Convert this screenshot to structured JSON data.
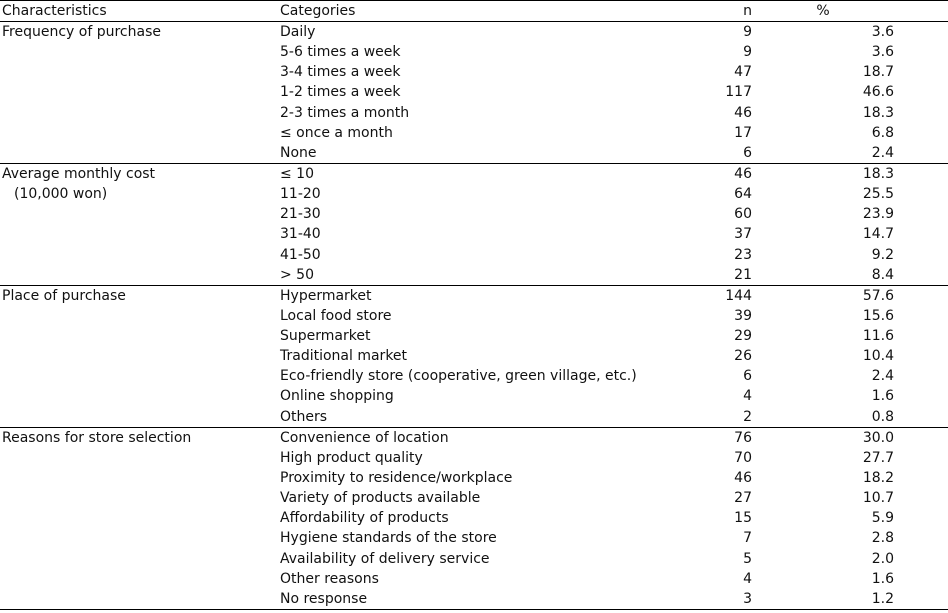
{
  "headers": {
    "characteristics": "Characteristics",
    "categories": "Categories",
    "n": "n",
    "percent": "%"
  },
  "groups": [
    {
      "name": "Frequency of purchase",
      "name_line2": "",
      "rows": [
        {
          "category": "Daily",
          "n": "9",
          "pct": "3.6"
        },
        {
          "category": "5-6 times a week",
          "n": "9",
          "pct": "3.6"
        },
        {
          "category": "3-4 times a week",
          "n": "47",
          "pct": "18.7"
        },
        {
          "category": "1-2 times a week",
          "n": "117",
          "pct": "46.6"
        },
        {
          "category": "2-3 times a month",
          "n": "46",
          "pct": "18.3"
        },
        {
          "category": "≤ once a month",
          "n": "17",
          "pct": "6.8"
        },
        {
          "category": "None",
          "n": "6",
          "pct": "2.4"
        }
      ]
    },
    {
      "name": "Average monthly cost",
      "name_line2": "(10,000 won)",
      "rows": [
        {
          "category": " ≤ 10",
          "n": "46",
          "pct": "18.3"
        },
        {
          "category": "11-20",
          "n": "64",
          "pct": "25.5"
        },
        {
          "category": "21-30",
          "n": "60",
          "pct": "23.9"
        },
        {
          "category": "31-40",
          "n": "37",
          "pct": "14.7"
        },
        {
          "category": "41-50",
          "n": "23",
          "pct": "9.2"
        },
        {
          "category": "> 50",
          "n": "21",
          "pct": "8.4"
        }
      ]
    },
    {
      "name": "Place of purchase",
      "name_line2": "",
      "rows": [
        {
          "category": "Hypermarket",
          "n": "144",
          "pct": "57.6"
        },
        {
          "category": "Local food store",
          "n": "39",
          "pct": "15.6"
        },
        {
          "category": "Supermarket",
          "n": "29",
          "pct": "11.6"
        },
        {
          "category": "Traditional market",
          "n": "26",
          "pct": "10.4"
        },
        {
          "category": "Eco-friendly store (cooperative, green village, etc.)",
          "n": "6",
          "pct": "2.4"
        },
        {
          "category": "Online shopping",
          "n": "4",
          "pct": "1.6"
        },
        {
          "category": "Others",
          "n": "2",
          "pct": "0.8"
        }
      ]
    },
    {
      "name": "Reasons for store selection",
      "name_line2": "",
      "rows": [
        {
          "category": "Convenience of location",
          "n": "76",
          "pct": "30.0"
        },
        {
          "category": "High product quality",
          "n": "70",
          "pct": "27.7"
        },
        {
          "category": "Proximity to residence/workplace",
          "n": "46",
          "pct": "18.2"
        },
        {
          "category": "Variety of products available",
          "n": "27",
          "pct": "10.7"
        },
        {
          "category": "Affordability of products",
          "n": "15",
          "pct": "5.9"
        },
        {
          "category": "Hygiene standards of the store",
          "n": "7",
          "pct": "2.8"
        },
        {
          "category": "Availability of delivery service",
          "n": "5",
          "pct": "2.0"
        },
        {
          "category": "Other reasons",
          "n": "4",
          "pct": "1.6"
        },
        {
          "category": "No response",
          "n": "3",
          "pct": "1.2"
        }
      ]
    }
  ]
}
